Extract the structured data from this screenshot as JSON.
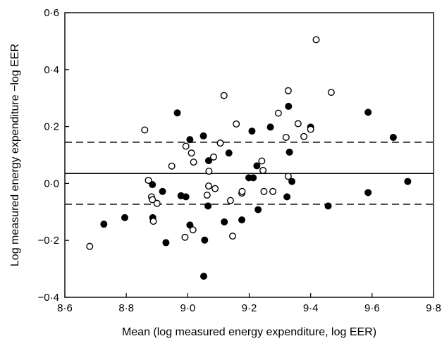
{
  "chart_data": {
    "type": "scatter",
    "title": "",
    "xlabel": "Mean (log measured energy expenditure, log EER)",
    "ylabel": "Log measured energy expenditure −log EER",
    "xlim": [
      8.6,
      9.8
    ],
    "ylim": [
      -0.4,
      0.6
    ],
    "xticks": [
      {
        "value": 8.6,
        "label": "8·6"
      },
      {
        "value": 8.8,
        "label": "8·8"
      },
      {
        "value": 9.0,
        "label": "9·0"
      },
      {
        "value": 9.2,
        "label": "9·2"
      },
      {
        "value": 9.4,
        "label": "9·4"
      },
      {
        "value": 9.6,
        "label": "9·6"
      },
      {
        "value": 9.8,
        "label": "9·8"
      }
    ],
    "yticks": [
      {
        "value": -0.4,
        "label": "−0·4"
      },
      {
        "value": -0.2,
        "label": "−0·2"
      },
      {
        "value": 0.0,
        "label": "0·0"
      },
      {
        "value": 0.2,
        "label": "0·2"
      },
      {
        "value": 0.4,
        "label": "0·4"
      },
      {
        "value": 0.6,
        "label": "0·6"
      }
    ],
    "grid": false,
    "reference_lines": [
      {
        "style": "solid",
        "y": 0.035
      },
      {
        "style": "dashed",
        "y": 0.145
      },
      {
        "style": "dashed",
        "y": -0.073
      }
    ],
    "series": [
      {
        "marker": "filled-circle",
        "color": "#000000",
        "points": [
          {
            "x": 8.727,
            "y": -0.143
          },
          {
            "x": 8.795,
            "y": -0.12
          },
          {
            "x": 8.885,
            "y": -0.004
          },
          {
            "x": 8.886,
            "y": -0.12
          },
          {
            "x": 8.918,
            "y": -0.028
          },
          {
            "x": 8.929,
            "y": -0.208
          },
          {
            "x": 8.966,
            "y": 0.248
          },
          {
            "x": 8.978,
            "y": -0.043
          },
          {
            "x": 8.994,
            "y": -0.047
          },
          {
            "x": 9.007,
            "y": 0.154
          },
          {
            "x": 9.007,
            "y": -0.146
          },
          {
            "x": 9.051,
            "y": 0.167
          },
          {
            "x": 9.052,
            "y": -0.326
          },
          {
            "x": 9.055,
            "y": -0.199
          },
          {
            "x": 9.066,
            "y": -0.079
          },
          {
            "x": 9.068,
            "y": 0.08
          },
          {
            "x": 9.119,
            "y": -0.135
          },
          {
            "x": 9.134,
            "y": 0.107
          },
          {
            "x": 9.176,
            "y": -0.128
          },
          {
            "x": 9.199,
            "y": 0.02
          },
          {
            "x": 9.209,
            "y": 0.184
          },
          {
            "x": 9.213,
            "y": 0.02
          },
          {
            "x": 9.225,
            "y": 0.062
          },
          {
            "x": 9.229,
            "y": -0.092
          },
          {
            "x": 9.269,
            "y": 0.198
          },
          {
            "x": 9.323,
            "y": -0.047
          },
          {
            "x": 9.328,
            "y": 0.271
          },
          {
            "x": 9.331,
            "y": 0.11
          },
          {
            "x": 9.339,
            "y": 0.007
          },
          {
            "x": 9.4,
            "y": 0.198
          },
          {
            "x": 9.457,
            "y": -0.079
          },
          {
            "x": 9.587,
            "y": 0.25
          },
          {
            "x": 9.587,
            "y": -0.032
          },
          {
            "x": 9.669,
            "y": 0.162
          },
          {
            "x": 9.716,
            "y": 0.007
          }
        ]
      },
      {
        "marker": "open-circle",
        "color": "#000000",
        "points": [
          {
            "x": 8.681,
            "y": -0.221
          },
          {
            "x": 8.86,
            "y": 0.188
          },
          {
            "x": 8.872,
            "y": 0.011
          },
          {
            "x": 8.882,
            "y": -0.047
          },
          {
            "x": 8.885,
            "y": -0.057
          },
          {
            "x": 8.888,
            "y": -0.133
          },
          {
            "x": 8.9,
            "y": -0.07
          },
          {
            "x": 8.948,
            "y": 0.061
          },
          {
            "x": 8.991,
            "y": -0.189
          },
          {
            "x": 8.994,
            "y": 0.131
          },
          {
            "x": 9.012,
            "y": 0.107
          },
          {
            "x": 9.017,
            "y": -0.163
          },
          {
            "x": 9.019,
            "y": 0.075
          },
          {
            "x": 9.063,
            "y": -0.041
          },
          {
            "x": 9.068,
            "y": -0.009
          },
          {
            "x": 9.069,
            "y": 0.043
          },
          {
            "x": 9.084,
            "y": 0.093
          },
          {
            "x": 9.089,
            "y": -0.018
          },
          {
            "x": 9.106,
            "y": 0.142
          },
          {
            "x": 9.118,
            "y": 0.309
          },
          {
            "x": 9.139,
            "y": -0.06
          },
          {
            "x": 9.146,
            "y": -0.185
          },
          {
            "x": 9.158,
            "y": 0.209
          },
          {
            "x": 9.176,
            "y": -0.034
          },
          {
            "x": 9.177,
            "y": -0.028
          },
          {
            "x": 9.241,
            "y": 0.079
          },
          {
            "x": 9.245,
            "y": 0.046
          },
          {
            "x": 9.248,
            "y": -0.028
          },
          {
            "x": 9.277,
            "y": -0.028
          },
          {
            "x": 9.295,
            "y": 0.247
          },
          {
            "x": 9.32,
            "y": 0.162
          },
          {
            "x": 9.327,
            "y": 0.326
          },
          {
            "x": 9.327,
            "y": 0.025
          },
          {
            "x": 9.359,
            "y": 0.21
          },
          {
            "x": 9.378,
            "y": 0.165
          },
          {
            "x": 9.4,
            "y": 0.19
          },
          {
            "x": 9.418,
            "y": 0.505
          },
          {
            "x": 9.467,
            "y": 0.32
          }
        ]
      }
    ]
  }
}
